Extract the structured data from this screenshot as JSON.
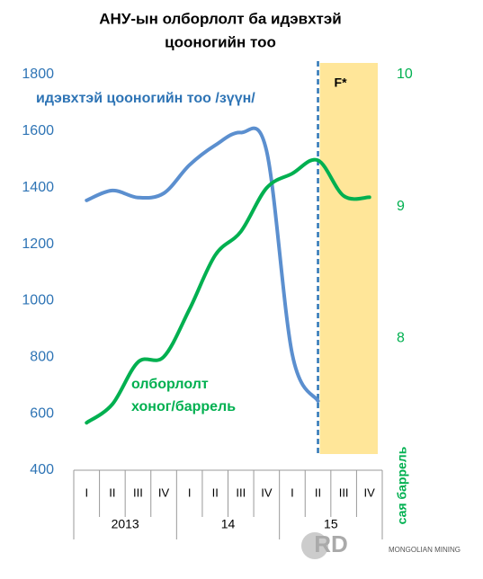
{
  "chart_data": {
    "type": "line",
    "title": [
      "АНУ-ын олборлолт ба идэвхтэй",
      "цооногийн тоо"
    ],
    "categories": [
      "I",
      "II",
      "III",
      "IV",
      "I",
      "II",
      "III",
      "IV",
      "I",
      "II",
      "III",
      "IV"
    ],
    "years": [
      "2013",
      "14",
      "15"
    ],
    "series": [
      {
        "name": "идэвхтэй цооногийн тоо /зүүн/",
        "color": "#5b8fcf",
        "axis": "y",
        "values": [
          1355,
          1390,
          1365,
          1380,
          1480,
          1550,
          1595,
          1530,
          810,
          645,
          null,
          null
        ]
      },
      {
        "name": [
          "олборлолт",
          "хоног/баррель"
        ],
        "color": "#00b050",
        "axis": "y2",
        "values": [
          7.36,
          7.5,
          7.82,
          7.86,
          8.22,
          8.63,
          8.81,
          9.14,
          9.25,
          9.35,
          9.08,
          9.07
        ]
      }
    ],
    "ylim": [
      400,
      1800
    ],
    "yticks": [
      400,
      600,
      800,
      1000,
      1200,
      1400,
      1600,
      1800
    ],
    "y2lim": [
      7,
      10
    ],
    "y2ticks": [
      8,
      9,
      10
    ],
    "y2label": "сая баррель",
    "forecast": {
      "label": "F*",
      "start": 9
    },
    "watermark": {
      "text": "RD",
      "caption": "MONGOLIAN MINING"
    }
  }
}
